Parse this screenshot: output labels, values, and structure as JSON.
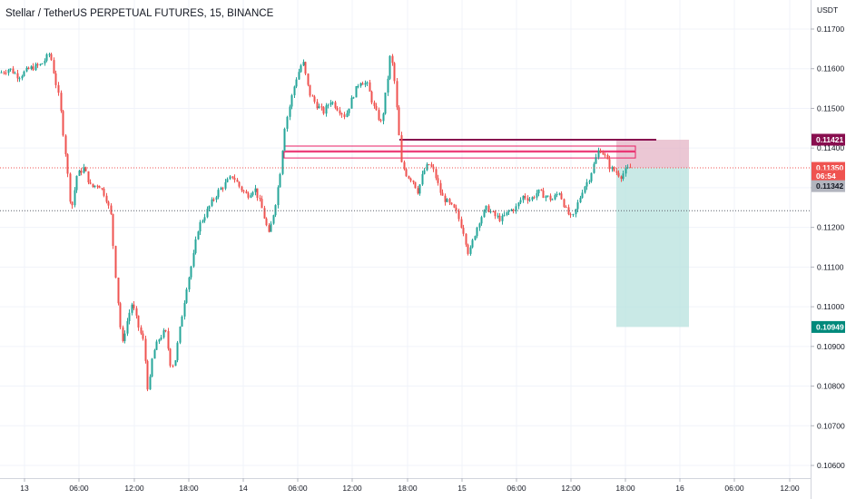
{
  "header": {
    "title": "Stellar / TetherUS PERPETUAL FUTURES, 15, BINANCE",
    "currency": "USDT"
  },
  "colors": {
    "up": "#26a69a",
    "down": "#ef5350",
    "entry": "#ef5350",
    "stop": "#880e4f",
    "target": "#00897b",
    "last": "#b2b5be",
    "zone_pink": "#e91e63"
  },
  "chart_data": {
    "type": "candlestick",
    "title": "Stellar / TetherUS PERPETUAL FUTURES, 15, BINANCE",
    "ylabel": "USDT",
    "ylim": [
      0.10585,
      0.11755
    ],
    "y_ticks": [
      "0.11700",
      "0.11600",
      "0.11500",
      "0.11400",
      "0.11300",
      "0.11200",
      "0.11100",
      "0.11000",
      "0.10900",
      "0.10800",
      "0.10700",
      "0.10600"
    ],
    "x_ticks": [
      "13",
      "06:00",
      "12:00",
      "18:00",
      "14",
      "06:00",
      "12:00",
      "18:00",
      "15",
      "06:00",
      "12:00",
      "18:00",
      "16",
      "06:00",
      "12:00"
    ],
    "close_path": [
      [
        0,
        0.1159
      ],
      [
        10,
        0.116
      ],
      [
        20,
        0.1158
      ],
      [
        32,
        0.116
      ],
      [
        45,
        0.1161
      ],
      [
        55,
        0.1164
      ],
      [
        65,
        0.1152
      ],
      [
        72,
        0.1138
      ],
      [
        78,
        0.1124
      ],
      [
        84,
        0.1133
      ],
      [
        92,
        0.1135
      ],
      [
        100,
        0.113
      ],
      [
        108,
        0.1131
      ],
      [
        116,
        0.1128
      ],
      [
        122,
        0.1123
      ],
      [
        128,
        0.1105
      ],
      [
        134,
        0.109
      ],
      [
        138,
        0.1095
      ],
      [
        145,
        0.1101
      ],
      [
        152,
        0.1095
      ],
      [
        158,
        0.1091
      ],
      [
        163,
        0.1078
      ],
      [
        168,
        0.1088
      ],
      [
        175,
        0.1092
      ],
      [
        182,
        0.1094
      ],
      [
        188,
        0.1085
      ],
      [
        192,
        0.1086
      ],
      [
        198,
        0.1095
      ],
      [
        205,
        0.1105
      ],
      [
        212,
        0.1112
      ],
      [
        218,
        0.112
      ],
      [
        225,
        0.1123
      ],
      [
        232,
        0.1126
      ],
      [
        240,
        0.1129
      ],
      [
        248,
        0.1131
      ],
      [
        256,
        0.1133
      ],
      [
        264,
        0.113
      ],
      [
        272,
        0.1128
      ],
      [
        280,
        0.113
      ],
      [
        288,
        0.1125
      ],
      [
        296,
        0.1118
      ],
      [
        304,
        0.1127
      ],
      [
        309,
        0.1135
      ],
      [
        313,
        0.1145
      ],
      [
        318,
        0.115
      ],
      [
        325,
        0.1157
      ],
      [
        333,
        0.1162
      ],
      [
        340,
        0.1154
      ],
      [
        348,
        0.1151
      ],
      [
        356,
        0.1149
      ],
      [
        364,
        0.1152
      ],
      [
        372,
        0.115
      ],
      [
        380,
        0.1148
      ],
      [
        388,
        0.1153
      ],
      [
        396,
        0.1157
      ],
      [
        404,
        0.1156
      ],
      [
        412,
        0.115
      ],
      [
        420,
        0.1146
      ],
      [
        426,
        0.1156
      ],
      [
        430,
        0.1164
      ],
      [
        434,
        0.1158
      ],
      [
        438,
        0.1147
      ],
      [
        442,
        0.1136
      ],
      [
        448,
        0.1133
      ],
      [
        454,
        0.1132
      ],
      [
        460,
        0.1129
      ],
      [
        466,
        0.1134
      ],
      [
        472,
        0.1136
      ],
      [
        478,
        0.1134
      ],
      [
        486,
        0.1128
      ],
      [
        494,
        0.1126
      ],
      [
        502,
        0.1124
      ],
      [
        510,
        0.1119
      ],
      [
        516,
        0.1113
      ],
      [
        522,
        0.1118
      ],
      [
        528,
        0.1122
      ],
      [
        536,
        0.1125
      ],
      [
        544,
        0.1123
      ],
      [
        552,
        0.1122
      ],
      [
        560,
        0.1124
      ],
      [
        568,
        0.1125
      ],
      [
        576,
        0.1128
      ],
      [
        584,
        0.1127
      ],
      [
        592,
        0.1129
      ],
      [
        600,
        0.1128
      ],
      [
        608,
        0.1127
      ],
      [
        616,
        0.1129
      ],
      [
        624,
        0.1124
      ],
      [
        630,
        0.1122
      ],
      [
        636,
        0.1126
      ],
      [
        642,
        0.113
      ],
      [
        648,
        0.1132
      ],
      [
        654,
        0.1136
      ],
      [
        660,
        0.114
      ],
      [
        666,
        0.1138
      ],
      [
        672,
        0.1135
      ],
      [
        678,
        0.1134
      ],
      [
        684,
        0.1133
      ],
      [
        690,
        0.11345
      ],
      [
        694,
        0.1135
      ]
    ],
    "horizontal_lines": [
      {
        "name": "entry",
        "price": 0.1135,
        "style": "dotted"
      },
      {
        "name": "support",
        "price": 0.11242,
        "style": "dotted"
      }
    ],
    "zones": [
      {
        "name": "pink-zone-upper",
        "from_x": 313,
        "to_x": 700,
        "price_top": 0.11405,
        "price_bottom": 0.11393
      },
      {
        "name": "pink-zone-lower",
        "from_x": 313,
        "to_x": 700,
        "price_top": 0.1139,
        "price_bottom": 0.11375
      },
      {
        "name": "resistance-line",
        "from_x": 440,
        "to_x": 723,
        "price": 0.11421
      }
    ],
    "position": {
      "type": "short",
      "entry": 0.1135,
      "stop": 0.11421,
      "target": 0.10949,
      "from_x": 679,
      "to_x": 759
    },
    "price_labels": [
      {
        "name": "stop-price-label",
        "text": "0.11421",
        "price": 0.11421,
        "role": "stop"
      },
      {
        "name": "last-price-label",
        "text": "0.11350",
        "price": 0.1135,
        "role": "entry"
      },
      {
        "name": "countdown-label",
        "text": "06:54",
        "price": 0.1133,
        "role": "entry"
      },
      {
        "name": "current-price-label",
        "text": "0.11342",
        "price": 0.11304,
        "role": "last"
      },
      {
        "name": "target-price-label",
        "text": "0.10949",
        "price": 0.10949,
        "role": "target"
      }
    ]
  }
}
